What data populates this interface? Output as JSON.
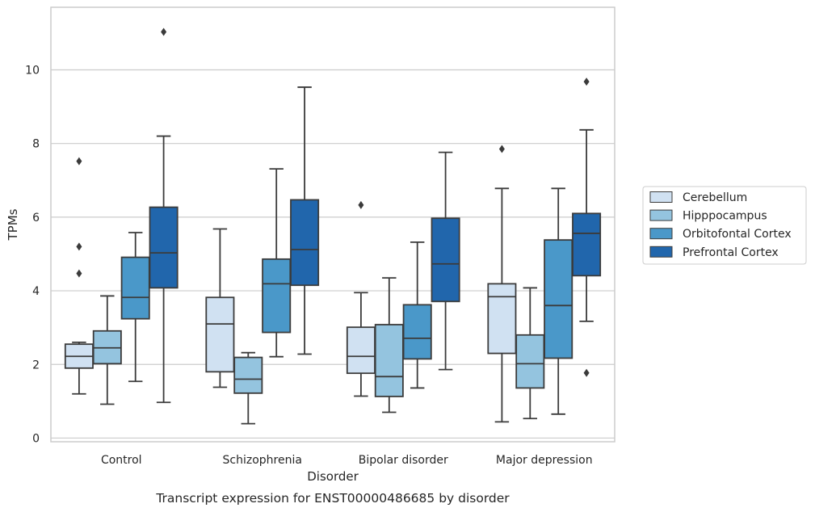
{
  "caption": "Transcript expression for ENST00000486685 by disorder",
  "chart_data": {
    "type": "box",
    "xlabel": "Disorder",
    "ylabel": "TPMs",
    "ylim": [
      -0.1,
      11.7
    ],
    "yticks": [
      0,
      2,
      4,
      6,
      8,
      10
    ],
    "grid": "horizontal",
    "legend_position": "right",
    "categories": [
      "Control",
      "Schizophrenia",
      "Bipolar disorder",
      "Major depression"
    ],
    "series": [
      {
        "name": "Cerebellum",
        "color": "#d0e1f2",
        "boxes": [
          {
            "whislo": 1.2,
            "q1": 1.9,
            "med": 2.22,
            "q3": 2.55,
            "whishi": 2.6,
            "fliers": [
              4.47,
              5.2,
              7.52
            ]
          },
          {
            "whislo": 1.38,
            "q1": 1.8,
            "med": 3.1,
            "q3": 3.82,
            "whishi": 5.68,
            "fliers": []
          },
          {
            "whislo": 1.14,
            "q1": 1.76,
            "med": 2.22,
            "q3": 3.01,
            "whishi": 3.95,
            "fliers": [
              6.33
            ]
          },
          {
            "whislo": 0.44,
            "q1": 2.3,
            "med": 3.84,
            "q3": 4.19,
            "whishi": 6.78,
            "fliers": [
              7.85
            ]
          }
        ]
      },
      {
        "name": "Hipppocampus",
        "color": "#94c4df",
        "boxes": [
          {
            "whislo": 0.92,
            "q1": 2.02,
            "med": 2.45,
            "q3": 2.91,
            "whishi": 3.86,
            "fliers": []
          },
          {
            "whislo": 0.39,
            "q1": 1.22,
            "med": 1.6,
            "q3": 2.19,
            "whishi": 2.32,
            "fliers": []
          },
          {
            "whislo": 0.7,
            "q1": 1.13,
            "med": 1.67,
            "q3": 3.08,
            "whishi": 4.35,
            "fliers": []
          },
          {
            "whislo": 0.53,
            "q1": 1.36,
            "med": 2.02,
            "q3": 2.8,
            "whishi": 4.08,
            "fliers": []
          }
        ]
      },
      {
        "name": "Orbitofontal Cortex",
        "color": "#4a98c9",
        "boxes": [
          {
            "whislo": 1.54,
            "q1": 3.24,
            "med": 3.82,
            "q3": 4.91,
            "whishi": 5.58,
            "fliers": []
          },
          {
            "whislo": 2.21,
            "q1": 2.87,
            "med": 4.19,
            "q3": 4.86,
            "whishi": 7.31,
            "fliers": []
          },
          {
            "whislo": 1.36,
            "q1": 2.15,
            "med": 2.71,
            "q3": 3.62,
            "whishi": 5.32,
            "fliers": []
          },
          {
            "whislo": 0.65,
            "q1": 2.17,
            "med": 3.6,
            "q3": 5.38,
            "whishi": 6.78,
            "fliers": []
          }
        ]
      },
      {
        "name": "Prefrontal Cortex",
        "color": "#2166ac",
        "boxes": [
          {
            "whislo": 0.97,
            "q1": 4.08,
            "med": 5.03,
            "q3": 6.27,
            "whishi": 8.2,
            "fliers": [
              11.03
            ]
          },
          {
            "whislo": 2.28,
            "q1": 4.15,
            "med": 5.12,
            "q3": 6.47,
            "whishi": 9.53,
            "fliers": []
          },
          {
            "whislo": 1.86,
            "q1": 3.71,
            "med": 4.73,
            "q3": 5.97,
            "whishi": 7.76,
            "fliers": []
          },
          {
            "whislo": 3.17,
            "q1": 4.41,
            "med": 5.56,
            "q3": 6.1,
            "whishi": 8.37,
            "fliers": [
              1.77,
              9.68
            ]
          }
        ]
      }
    ]
  }
}
